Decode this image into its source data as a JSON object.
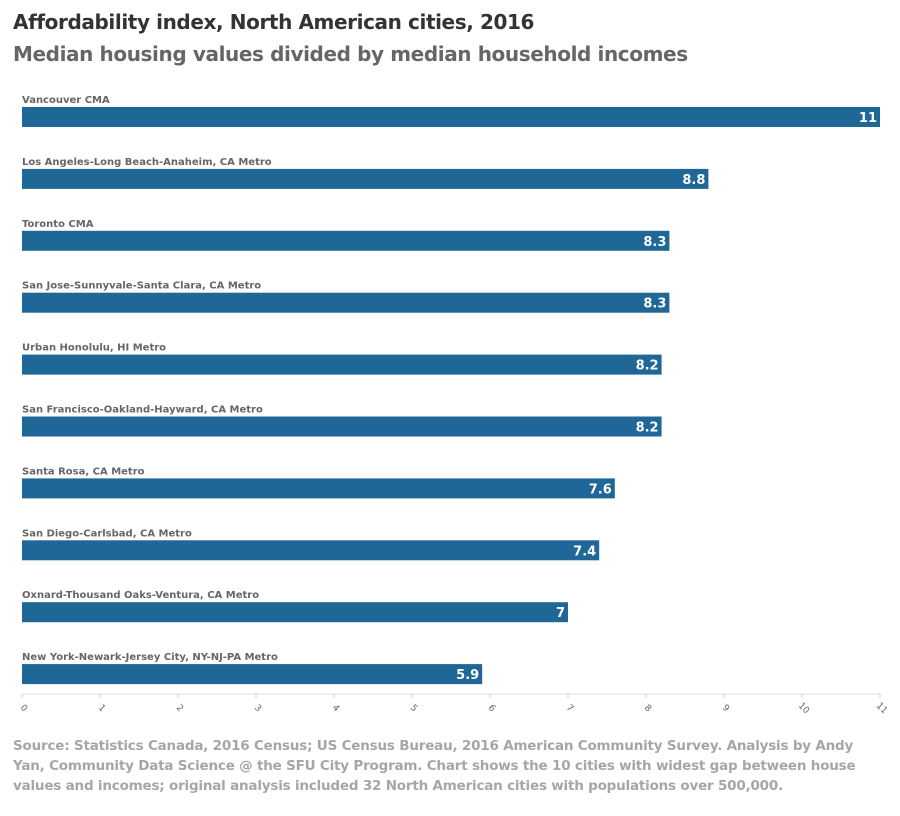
{
  "header": {
    "title": "Affordability index, North American cities, 2016",
    "subtitle": "Median housing values divided by median household incomes"
  },
  "chart_data": {
    "type": "bar",
    "orientation": "horizontal",
    "categories": [
      "Vancouver CMA",
      "Los Angeles-Long Beach-Anaheim, CA Metro",
      "Toronto CMA",
      "San Jose-Sunnyvale-Santa Clara, CA Metro",
      "Urban Honolulu, HI Metro",
      "San Francisco-Oakland-Hayward, CA Metro",
      "Santa Rosa, CA Metro",
      "San Diego-Carlsbad, CA Metro",
      "Oxnard-Thousand Oaks-Ventura, CA Metro",
      "New York-Newark-Jersey City, NY-NJ-PA Metro"
    ],
    "values": [
      11,
      8.8,
      8.3,
      8.3,
      8.2,
      8.2,
      7.6,
      7.4,
      7,
      5.9
    ],
    "value_labels": [
      "11",
      "8.8",
      "8.3",
      "8.3",
      "8.2",
      "8.2",
      "7.6",
      "7.4",
      "7",
      "5.9"
    ],
    "xlim": [
      0,
      11
    ],
    "xticks": [
      0,
      1,
      2,
      3,
      4,
      5,
      6,
      7,
      8,
      9,
      10,
      11
    ],
    "xlabel": "",
    "ylabel": "",
    "bar_color": "#1f6796",
    "grid": false
  },
  "footer": {
    "source": "Source: Statistics Canada, 2016 Census; US Census Bureau, 2016 American Community Survey. Analysis by Andy Yan, Community Data Science @ the SFU City Program. Chart shows the 10 cities with widest gap between house values and incomes; original analysis included 32 North American cities with populations over 500,000."
  }
}
